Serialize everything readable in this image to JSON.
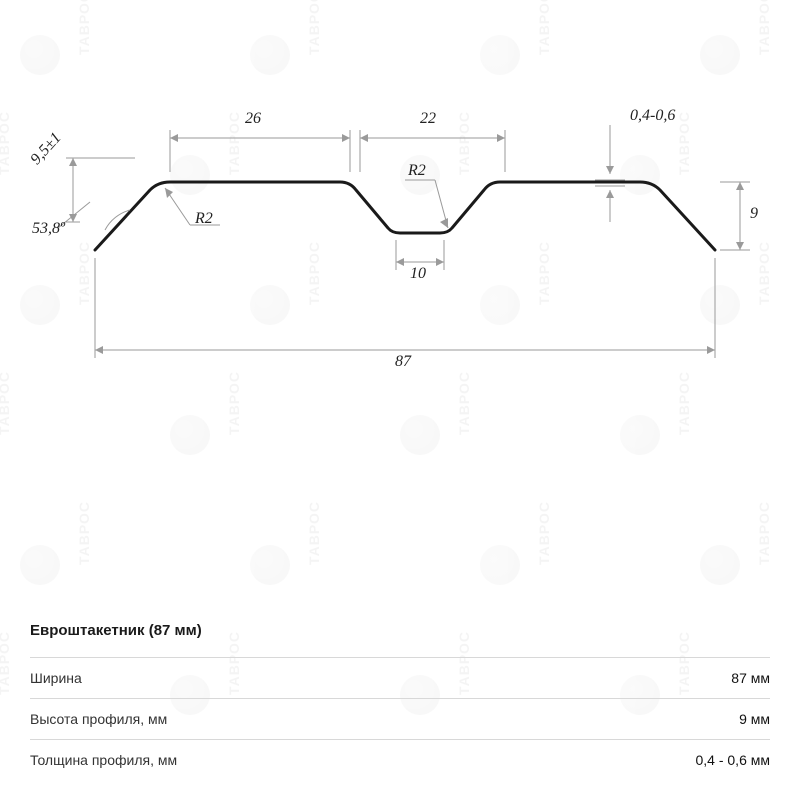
{
  "watermark": {
    "text": "ТАВРОС",
    "positions": [
      [
        20,
        10
      ],
      [
        250,
        10
      ],
      [
        480,
        10
      ],
      [
        700,
        10
      ],
      [
        -60,
        130
      ],
      [
        170,
        130
      ],
      [
        400,
        130
      ],
      [
        620,
        130
      ],
      [
        20,
        260
      ],
      [
        250,
        260
      ],
      [
        480,
        260
      ],
      [
        700,
        260
      ],
      [
        -60,
        390
      ],
      [
        170,
        390
      ],
      [
        400,
        390
      ],
      [
        620,
        390
      ],
      [
        20,
        520
      ],
      [
        250,
        520
      ],
      [
        480,
        520
      ],
      [
        700,
        520
      ],
      [
        -60,
        650
      ],
      [
        170,
        650
      ],
      [
        400,
        650
      ],
      [
        620,
        650
      ]
    ]
  },
  "diagram": {
    "profile_color": "#1a1a1a",
    "profile_width": 3,
    "dim_color": "#9a9a9a",
    "dim_width": 1,
    "labels": {
      "top_left_segment": "26",
      "top_right_segment": "22",
      "thickness": "0,4-0,6",
      "left_slant": "9,5±1",
      "left_angle": "53,8º",
      "radius_left": "R2",
      "radius_mid": "R2",
      "bottom_width": "10",
      "right_height": "9",
      "total_width": "87"
    }
  },
  "spec": {
    "title": "Евроштакетник (87 мм)",
    "rows": [
      {
        "label": "Ширина",
        "value": "87 мм"
      },
      {
        "label": "Высота профиля, мм",
        "value": "9 мм"
      },
      {
        "label": "Толщина профиля, мм",
        "value": "0,4 - 0,6 мм"
      }
    ]
  }
}
